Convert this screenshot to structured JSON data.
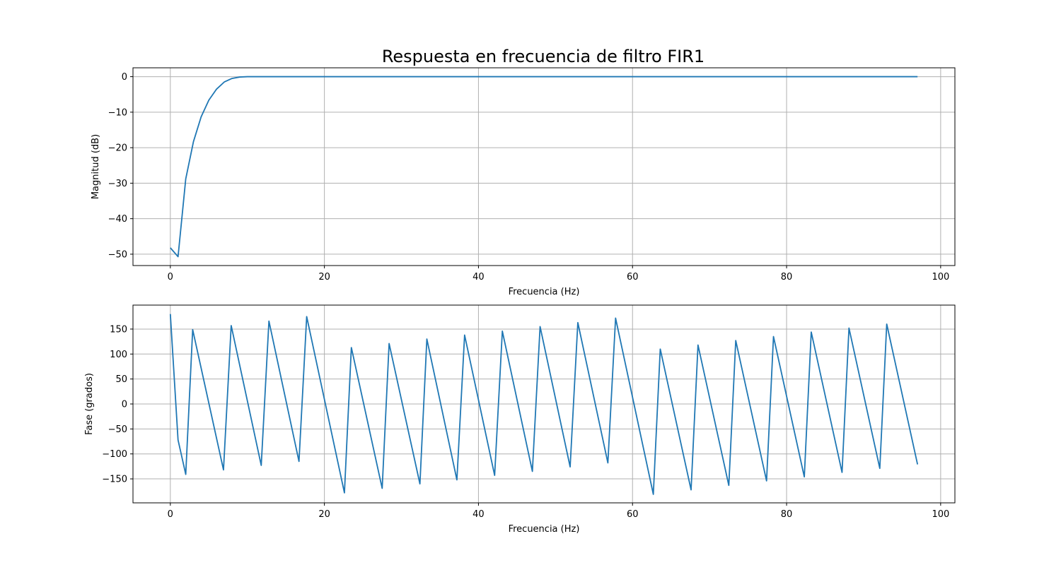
{
  "figure_title": "Respuesta en frecuencia de filtro FIR1",
  "colors": {
    "series": "#1f77b4"
  },
  "chart_data": [
    {
      "type": "line",
      "xlabel": "Frecuencia (Hz)",
      "ylabel": "Magnitud (dB)",
      "xlim": [
        -4.85,
        101.85
      ],
      "ylim": [
        -53.2,
        2.5
      ],
      "xticks": [
        0,
        20,
        40,
        60,
        80,
        100
      ],
      "yticks": [
        -50,
        -40,
        -30,
        -20,
        -10,
        0
      ],
      "grid": true,
      "series": [
        {
          "x": [
            0,
            1,
            2,
            3,
            4,
            5,
            6,
            7,
            8,
            9,
            10,
            11,
            97
          ],
          "y": [
            -48.2,
            -50.7,
            -28.8,
            -18.3,
            -11.3,
            -6.6,
            -3.5,
            -1.5,
            -0.5,
            -0.1,
            0,
            0,
            0
          ]
        }
      ]
    },
    {
      "type": "line",
      "xlabel": "Frecuencia (Hz)",
      "ylabel": "Fase (grados)",
      "xlim": [
        -4.85,
        101.85
      ],
      "ylim": [
        -198,
        198
      ],
      "xticks": [
        0,
        20,
        40,
        60,
        80,
        100
      ],
      "yticks": [
        -150,
        -100,
        -50,
        0,
        50,
        100,
        150
      ],
      "grid": true,
      "series": [
        {
          "x": [
            0,
            1,
            2,
            2.9,
            6.9,
            7.9,
            11.8,
            12.8,
            16.7,
            17.7,
            22.6,
            23.5,
            27.5,
            28.4,
            32.4,
            33.3,
            37.2,
            38.2,
            42.1,
            43.1,
            47.0,
            48.0,
            51.9,
            52.9,
            56.8,
            57.8,
            62.7,
            63.6,
            67.6,
            68.5,
            72.5,
            73.4,
            77.4,
            78.3,
            82.3,
            83.2,
            87.2,
            88.1,
            92.1,
            93.0,
            97
          ],
          "y": [
            180,
            -72,
            -141,
            149,
            -132,
            157,
            -123,
            166,
            -115,
            175,
            -178,
            113,
            -169,
            121,
            -160,
            130,
            -152,
            138,
            -143,
            146,
            -135,
            155,
            -126,
            163,
            -118,
            172,
            -181,
            110,
            -172,
            118,
            -163,
            127,
            -154,
            135,
            -146,
            144,
            -137,
            152,
            -129,
            160,
            -121
          ]
        }
      ]
    }
  ]
}
